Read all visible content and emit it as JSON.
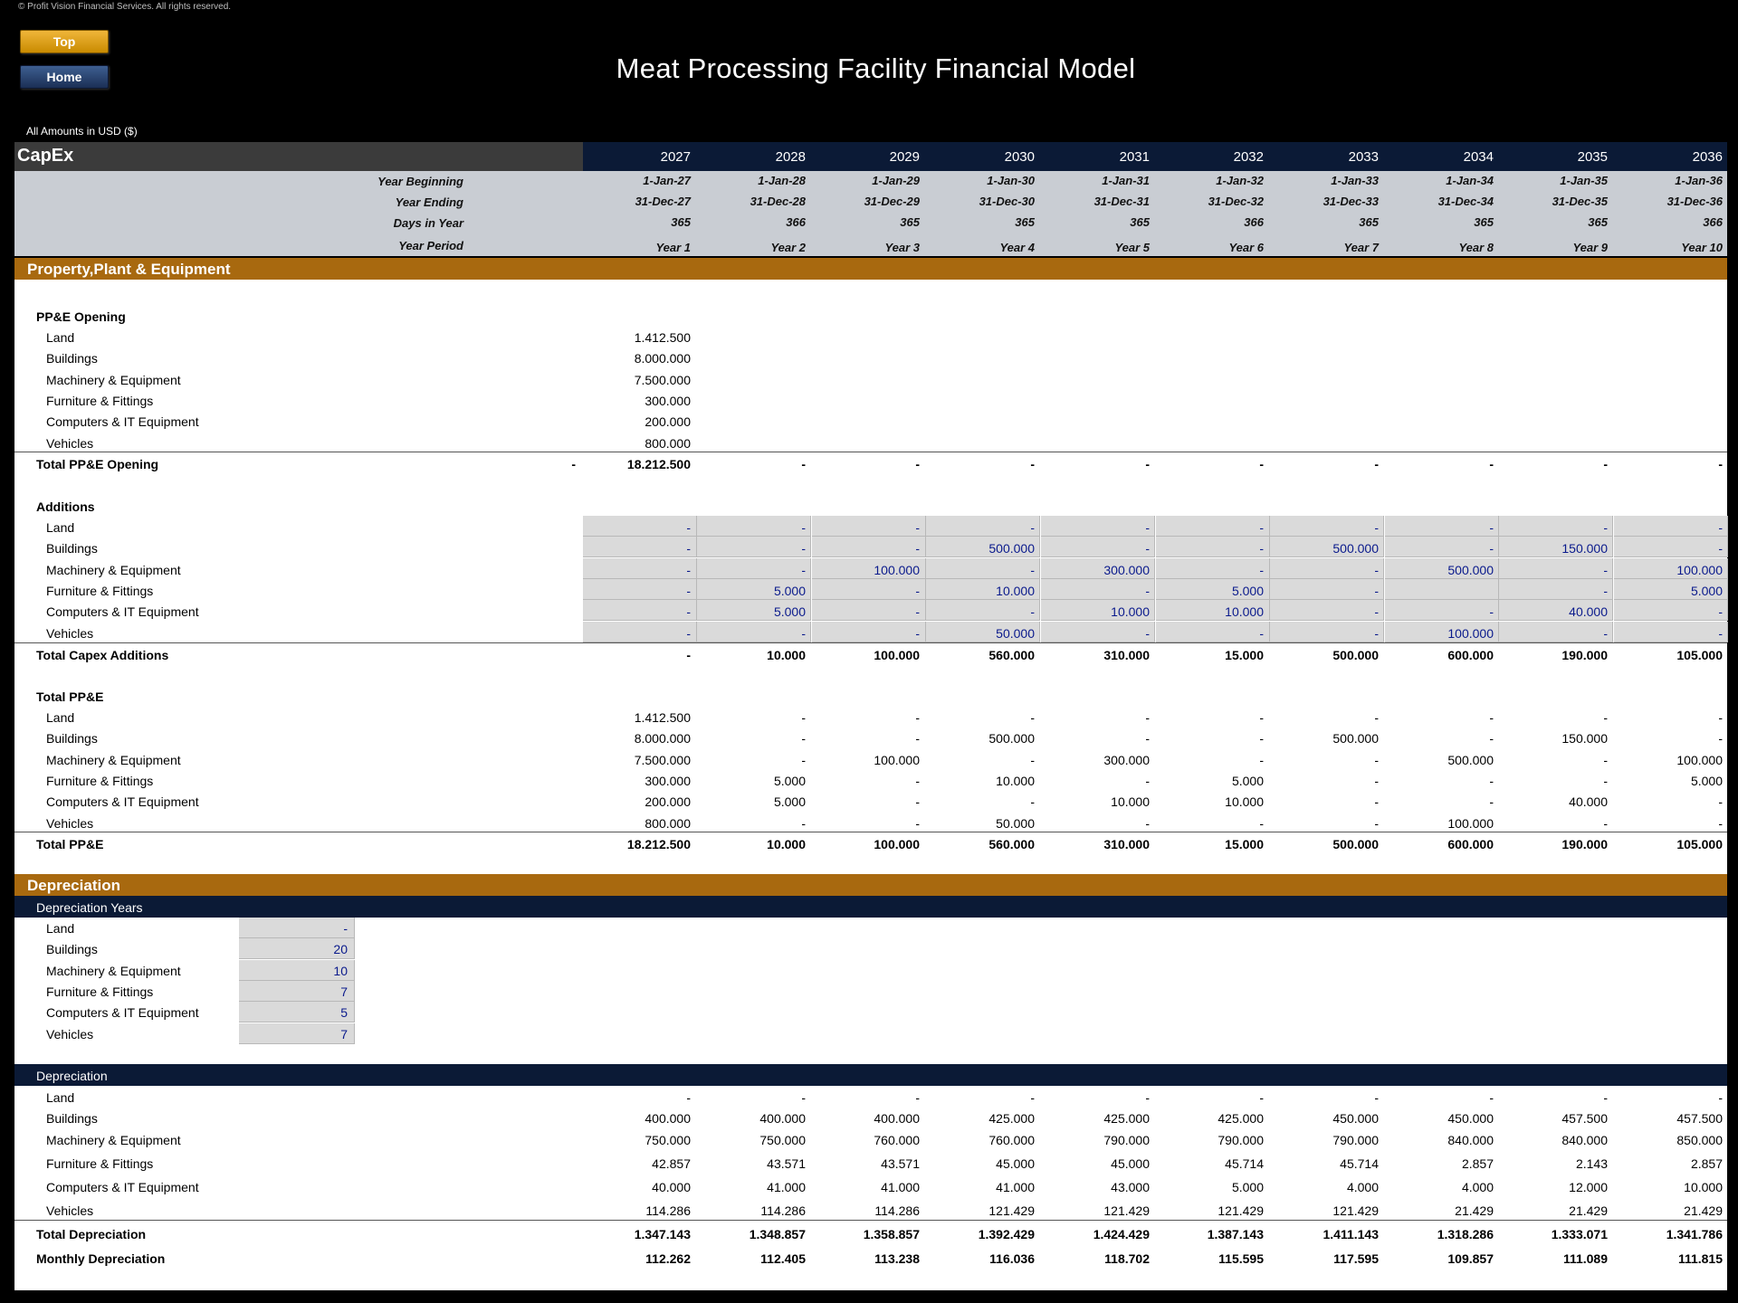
{
  "header": {
    "copyright": "© Profit Vision Financial Services. All rights reserved.",
    "top_button": "Top",
    "home_button": "Home",
    "title": "Meat Processing Facility Financial Model",
    "amounts_label": "All Amounts in  USD ($)",
    "sheet_name": "CapEx"
  },
  "timeline": {
    "years": [
      "2027",
      "2028",
      "2029",
      "2030",
      "2031",
      "2032",
      "2033",
      "2034",
      "2035",
      "2036"
    ],
    "labels": {
      "year_beginning": "Year Beginning",
      "year_ending": "Year Ending",
      "days_in_year": "Days in Year",
      "year_period": "Year Period"
    },
    "year_beginning": [
      "1-Jan-27",
      "1-Jan-28",
      "1-Jan-29",
      "1-Jan-30",
      "1-Jan-31",
      "1-Jan-32",
      "1-Jan-33",
      "1-Jan-34",
      "1-Jan-35",
      "1-Jan-36"
    ],
    "year_ending": [
      "31-Dec-27",
      "31-Dec-28",
      "31-Dec-29",
      "31-Dec-30",
      "31-Dec-31",
      "31-Dec-32",
      "31-Dec-33",
      "31-Dec-34",
      "31-Dec-35",
      "31-Dec-36"
    ],
    "days_in_year": [
      "365",
      "366",
      "365",
      "365",
      "365",
      "366",
      "365",
      "365",
      "365",
      "366"
    ],
    "year_period": [
      "Year 1",
      "Year 2",
      "Year 3",
      "Year 4",
      "Year 5",
      "Year 6",
      "Year 7",
      "Year 8",
      "Year 9",
      "Year 10"
    ]
  },
  "sections": {
    "ppe": "Property,Plant & Equipment",
    "depreciation": "Depreciation",
    "dep_years_header": "Depreciation Years",
    "dep_header": "Depreciation"
  },
  "ppe_opening": {
    "title": "PP&E Opening",
    "rows": [
      {
        "label": "Land",
        "value": "1.412.500"
      },
      {
        "label": "Buildings",
        "value": "8.000.000"
      },
      {
        "label": "Machinery & Equipment",
        "value": "7.500.000"
      },
      {
        "label": "Furniture & Fittings",
        "value": "300.000"
      },
      {
        "label": "Computers & IT Equipment",
        "value": "200.000"
      },
      {
        "label": "Vehicles",
        "value": "800.000"
      }
    ],
    "total_label": "Total PP&E Opening",
    "total_prefix": "-",
    "total_values": [
      "18.212.500",
      "-",
      "-",
      "-",
      "-",
      "-",
      "-",
      "-",
      "-",
      "-"
    ]
  },
  "additions": {
    "title": "Additions",
    "rows": [
      {
        "label": "Land",
        "values": [
          "-",
          "-",
          "-",
          "-",
          "-",
          "-",
          "-",
          "-",
          "-",
          "-"
        ]
      },
      {
        "label": "Buildings",
        "values": [
          "-",
          "-",
          "-",
          "500.000",
          "-",
          "-",
          "500.000",
          "-",
          "150.000",
          "-"
        ]
      },
      {
        "label": "Machinery & Equipment",
        "values": [
          "-",
          "-",
          "100.000",
          "-",
          "300.000",
          "-",
          "-",
          "500.000",
          "-",
          "100.000"
        ]
      },
      {
        "label": "Furniture & Fittings",
        "values": [
          "-",
          "5.000",
          "-",
          "10.000",
          "-",
          "5.000",
          "-",
          "",
          "-",
          "5.000"
        ]
      },
      {
        "label": "Computers & IT Equipment",
        "values": [
          "-",
          "5.000",
          "-",
          "-",
          "10.000",
          "10.000",
          "-",
          "-",
          "40.000",
          "-"
        ]
      },
      {
        "label": "Vehicles",
        "values": [
          "-",
          "-",
          "-",
          "50.000",
          "-",
          "-",
          "-",
          "100.000",
          "-",
          "-"
        ]
      }
    ],
    "total_label": "Total Capex Additions",
    "total_values": [
      "-",
      "10.000",
      "100.000",
      "560.000",
      "310.000",
      "15.000",
      "500.000",
      "600.000",
      "190.000",
      "105.000"
    ]
  },
  "total_ppe": {
    "title": "Total PP&E",
    "rows": [
      {
        "label": "Land",
        "values": [
          "1.412.500",
          "-",
          "-",
          "-",
          "-",
          "-",
          "-",
          "-",
          "-",
          "-"
        ]
      },
      {
        "label": "Buildings",
        "values": [
          "8.000.000",
          "-",
          "-",
          "500.000",
          "-",
          "-",
          "500.000",
          "-",
          "150.000",
          "-"
        ]
      },
      {
        "label": "Machinery & Equipment",
        "values": [
          "7.500.000",
          "-",
          "100.000",
          "-",
          "300.000",
          "-",
          "-",
          "500.000",
          "-",
          "100.000"
        ]
      },
      {
        "label": "Furniture & Fittings",
        "values": [
          "300.000",
          "5.000",
          "-",
          "10.000",
          "-",
          "5.000",
          "-",
          "-",
          "-",
          "5.000"
        ]
      },
      {
        "label": "Computers & IT Equipment",
        "values": [
          "200.000",
          "5.000",
          "-",
          "-",
          "10.000",
          "10.000",
          "-",
          "-",
          "40.000",
          "-"
        ]
      },
      {
        "label": "Vehicles",
        "values": [
          "800.000",
          "-",
          "-",
          "50.000",
          "-",
          "-",
          "-",
          "100.000",
          "-",
          "-"
        ]
      }
    ],
    "total_label": "Total PP&E",
    "total_values": [
      "18.212.500",
      "10.000",
      "100.000",
      "560.000",
      "310.000",
      "15.000",
      "500.000",
      "600.000",
      "190.000",
      "105.000"
    ]
  },
  "dep_years": {
    "rows": [
      {
        "label": "Land",
        "value": "-"
      },
      {
        "label": "Buildings",
        "value": "20"
      },
      {
        "label": "Machinery & Equipment",
        "value": "10"
      },
      {
        "label": "Furniture & Fittings",
        "value": "7"
      },
      {
        "label": "Computers & IT Equipment",
        "value": "5"
      },
      {
        "label": "Vehicles",
        "value": "7"
      }
    ]
  },
  "depreciation": {
    "rows": [
      {
        "label": "Land",
        "values": [
          "-",
          "-",
          "-",
          "-",
          "-",
          "-",
          "-",
          "-",
          "-",
          "-"
        ]
      },
      {
        "label": "Buildings",
        "values": [
          "400.000",
          "400.000",
          "400.000",
          "425.000",
          "425.000",
          "425.000",
          "450.000",
          "450.000",
          "457.500",
          "457.500"
        ]
      },
      {
        "label": "Machinery & Equipment",
        "values": [
          "750.000",
          "750.000",
          "760.000",
          "760.000",
          "790.000",
          "790.000",
          "790.000",
          "840.000",
          "840.000",
          "850.000"
        ]
      },
      {
        "label": "Furniture & Fittings",
        "values": [
          "42.857",
          "43.571",
          "43.571",
          "45.000",
          "45.000",
          "45.714",
          "45.714",
          "2.857",
          "2.143",
          "2.857"
        ]
      },
      {
        "label": "Computers & IT Equipment",
        "values": [
          "40.000",
          "41.000",
          "41.000",
          "41.000",
          "43.000",
          "5.000",
          "4.000",
          "4.000",
          "12.000",
          "10.000"
        ]
      },
      {
        "label": "Vehicles",
        "values": [
          "114.286",
          "114.286",
          "114.286",
          "121.429",
          "121.429",
          "121.429",
          "121.429",
          "21.429",
          "21.429",
          "21.429"
        ]
      }
    ],
    "total_label": "Total Depreciation",
    "total_values": [
      "1.347.143",
      "1.348.857",
      "1.358.857",
      "1.392.429",
      "1.424.429",
      "1.387.143",
      "1.411.143",
      "1.318.286",
      "1.333.071",
      "1.341.786"
    ],
    "monthly_label": "Monthly Depreciation",
    "monthly_values": [
      "112.262",
      "112.405",
      "113.238",
      "116.036",
      "118.702",
      "115.595",
      "117.595",
      "109.857",
      "111.089",
      "111.815"
    ]
  }
}
